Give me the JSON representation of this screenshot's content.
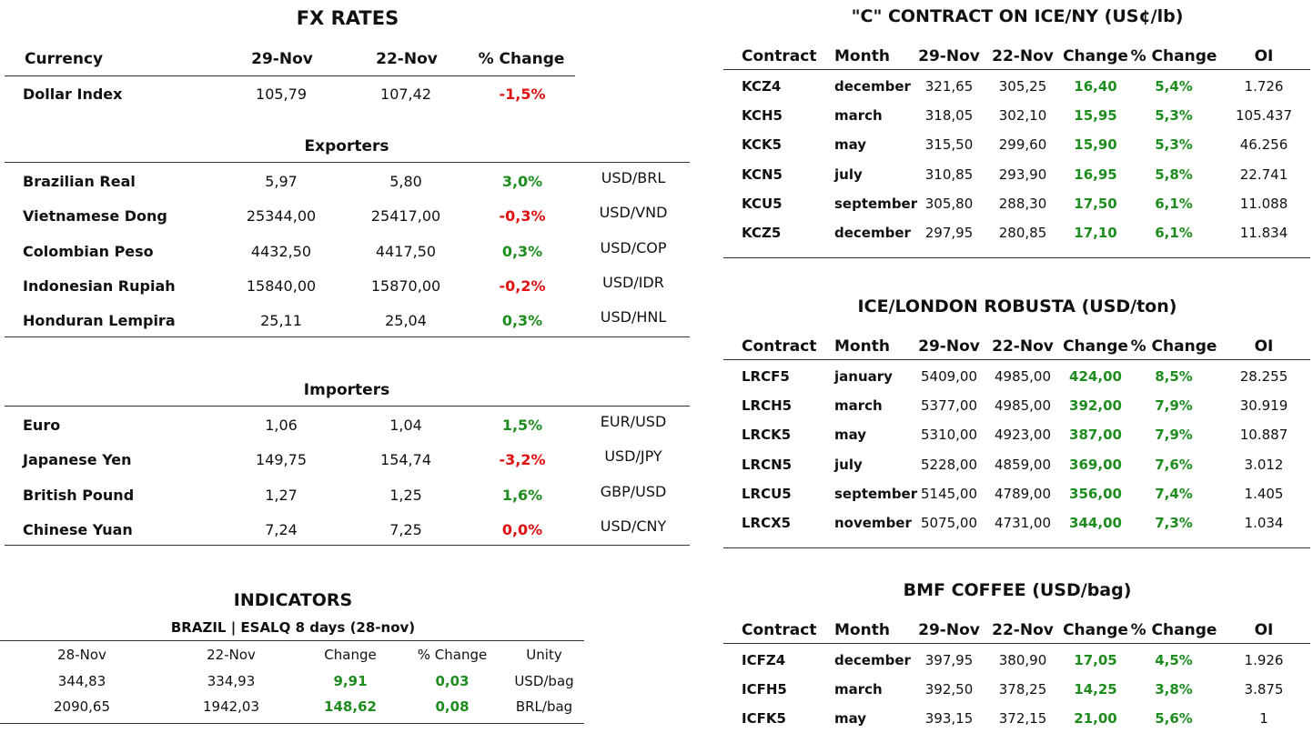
{
  "fx": {
    "title": "FX RATES",
    "header": [
      "Currency",
      "29-Nov",
      "22-Nov",
      "% Change"
    ],
    "rows": [
      [
        "Dollar Index",
        "105,79",
        "107,42",
        "-1,5%"
      ]
    ],
    "exporters": {
      "title": "Exporters",
      "rows": [
        [
          "Brazilian Real",
          "5,97",
          "5,80",
          "3,0%",
          "USD/BRL"
        ],
        [
          "Vietnamese Dong",
          "25344,00",
          "25417,00",
          "-0,3%",
          "USD/VND"
        ],
        [
          "Colombian Peso",
          "4432,50",
          "4417,50",
          "0,3%",
          "USD/COP"
        ],
        [
          "Indonesian Rupiah",
          "15840,00",
          "15870,00",
          "-0,2%",
          "USD/IDR"
        ],
        [
          "Honduran Lempira",
          "25,11",
          "25,04",
          "0,3%",
          "USD/HNL"
        ]
      ]
    },
    "importers": {
      "title": "Importers",
      "rows": [
        [
          "Euro",
          "1,06",
          "1,04",
          "1,5%",
          "EUR/USD"
        ],
        [
          "Japanese Yen",
          "149,75",
          "154,74",
          "-3,2%",
          "USD/JPY"
        ],
        [
          "British Pound",
          "1,27",
          "1,25",
          "1,6%",
          "GBP/USD"
        ],
        [
          "Chinese Yuan",
          "7,24",
          "7,25",
          "0,0%",
          "USD/CNY"
        ]
      ]
    }
  },
  "indicators": {
    "title": "INDICATORS",
    "subtitle": "BRAZIL | ESALQ 8 days (28-nov)",
    "header": [
      "28-Nov",
      "22-Nov",
      "Change",
      "% Change",
      "Unity"
    ],
    "rows": [
      [
        "344,83",
        "334,93",
        "9,91",
        "0,03",
        "USD/bag"
      ],
      [
        "2090,65",
        "1942,03",
        "148,62",
        "0,08",
        "BRL/bag"
      ]
    ]
  },
  "contracts": [
    {
      "title": "\"C\" CONTRACT ON ICE/NY (US¢/lb)",
      "header": [
        "Contract",
        "Month",
        "29-Nov",
        "22-Nov",
        "Change",
        "% Change",
        "OI"
      ],
      "rows": [
        [
          "KCZ4",
          "december",
          "321,65",
          "305,25",
          "16,40",
          "5,4%",
          "1.726"
        ],
        [
          "KCH5",
          "march",
          "318,05",
          "302,10",
          "15,95",
          "5,3%",
          "105.437"
        ],
        [
          "KCK5",
          "may",
          "315,50",
          "299,60",
          "15,90",
          "5,3%",
          "46.256"
        ],
        [
          "KCN5",
          "july",
          "310,85",
          "293,90",
          "16,95",
          "5,8%",
          "22.741"
        ],
        [
          "KCU5",
          "september",
          "305,80",
          "288,30",
          "17,50",
          "6,1%",
          "11.088"
        ],
        [
          "KCZ5",
          "december",
          "297,95",
          "280,85",
          "17,10",
          "6,1%",
          "11.834"
        ]
      ]
    },
    {
      "title": "ICE/LONDON ROBUSTA (USD/ton)",
      "header": [
        "Contract",
        "Month",
        "29-Nov",
        "22-Nov",
        "Change",
        "% Change",
        "OI"
      ],
      "rows": [
        [
          "LRCF5",
          "january",
          "5409,00",
          "4985,00",
          "424,00",
          "8,5%",
          "28.255"
        ],
        [
          "LRCH5",
          "march",
          "5377,00",
          "4985,00",
          "392,00",
          "7,9%",
          "30.919"
        ],
        [
          "LRCK5",
          "may",
          "5310,00",
          "4923,00",
          "387,00",
          "7,9%",
          "10.887"
        ],
        [
          "LRCN5",
          "july",
          "5228,00",
          "4859,00",
          "369,00",
          "7,6%",
          "3.012"
        ],
        [
          "LRCU5",
          "september",
          "5145,00",
          "4789,00",
          "356,00",
          "7,4%",
          "1.405"
        ],
        [
          "LRCX5",
          "november",
          "5075,00",
          "4731,00",
          "344,00",
          "7,3%",
          "1.034"
        ]
      ]
    },
    {
      "title": "BMF COFFEE (USD/bag)",
      "header": [
        "Contract",
        "Month",
        "29-Nov",
        "22-Nov",
        "Change",
        "% Change",
        "OI"
      ],
      "rows": [
        [
          "ICFZ4",
          "december",
          "397,95",
          "380,90",
          "17,05",
          "4,5%",
          "1.926"
        ],
        [
          "ICFH5",
          "march",
          "392,50",
          "378,25",
          "14,25",
          "3,8%",
          "3.875"
        ],
        [
          "ICFK5",
          "may",
          "393,15",
          "372,15",
          "21,00",
          "5,6%",
          "1"
        ]
      ]
    }
  ]
}
